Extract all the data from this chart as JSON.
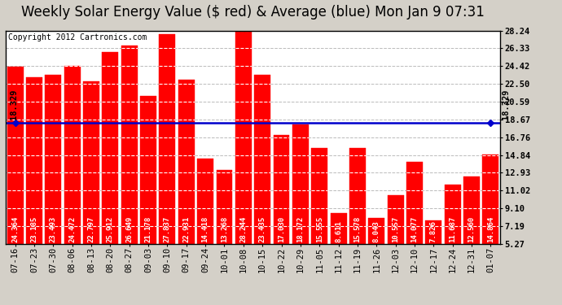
{
  "title": "Weekly Solar Energy Value ($ red) & Average (blue) Mon Jan 9 07:31",
  "copyright": "Copyright 2012 Cartronics.com",
  "categories": [
    "07-16",
    "07-23",
    "07-30",
    "08-06",
    "08-13",
    "08-20",
    "08-27",
    "09-03",
    "09-10",
    "09-17",
    "09-24",
    "10-01",
    "10-08",
    "10-15",
    "10-22",
    "10-29",
    "11-05",
    "11-12",
    "11-19",
    "11-26",
    "12-03",
    "12-10",
    "12-17",
    "12-24",
    "12-31",
    "01-07"
  ],
  "values": [
    24.364,
    23.185,
    23.493,
    24.472,
    22.797,
    25.912,
    26.649,
    21.178,
    27.837,
    22.931,
    14.418,
    13.268,
    28.244,
    23.435,
    17.03,
    18.172,
    15.555,
    8.611,
    15.578,
    8.043,
    10.557,
    14.077,
    7.826,
    11.687,
    12.56,
    14.864
  ],
  "average": 18.329,
  "average_label": "18.329",
  "bar_color": "#ff0000",
  "avg_line_color": "#0000cc",
  "plot_bg_color": "#ffffff",
  "outer_bg_color": "#d4d0c8",
  "grid_color": "#aaaaaa",
  "yticks": [
    5.27,
    7.19,
    9.1,
    11.02,
    12.93,
    14.84,
    16.76,
    18.67,
    20.59,
    22.5,
    24.42,
    26.33,
    28.24
  ],
  "ylim_min": 5.27,
  "ylim_max": 28.24,
  "title_fontsize": 12,
  "bar_value_fontsize": 6.5,
  "tick_fontsize": 7.5,
  "copyright_fontsize": 7
}
